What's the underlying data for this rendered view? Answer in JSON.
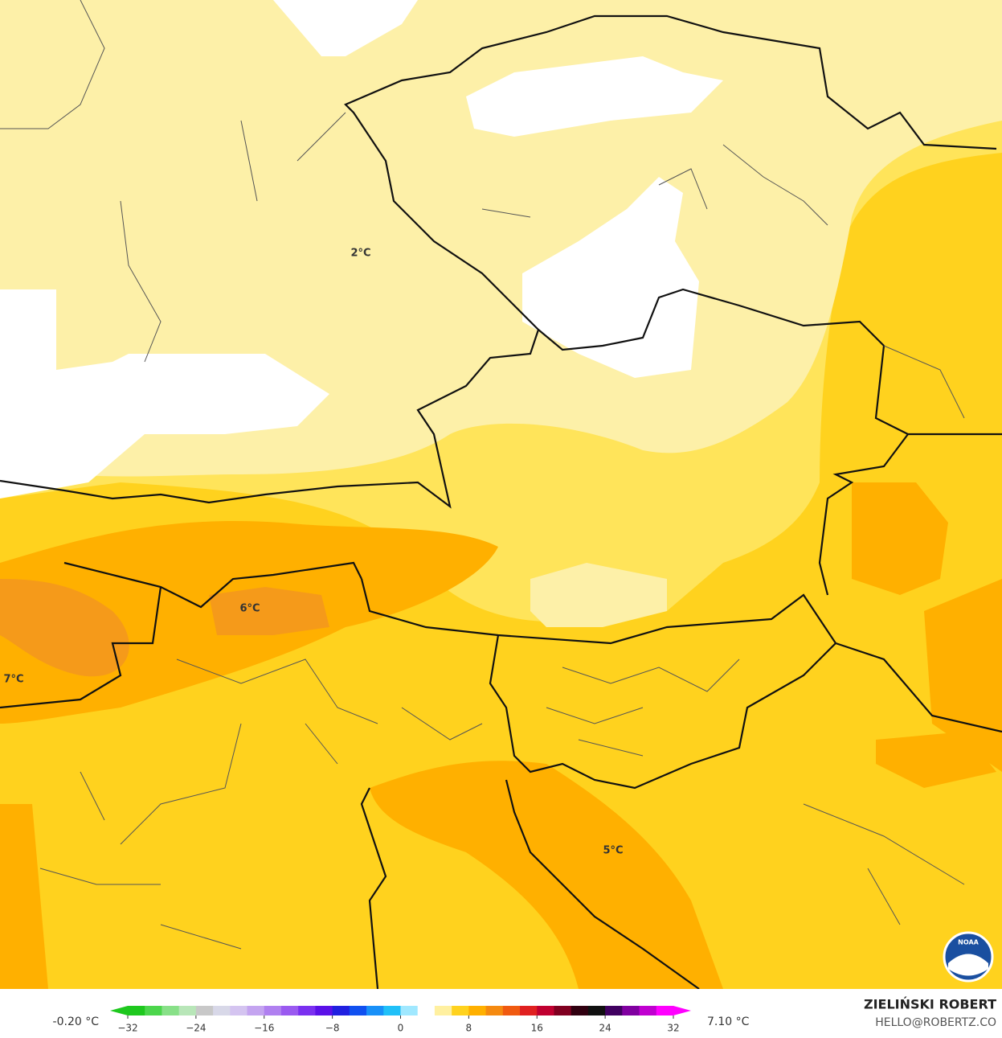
{
  "map": {
    "labels": [
      "2°C",
      "6°C",
      "7°C",
      "5°C"
    ],
    "colorbar": {
      "lim": [
        -32,
        32
      ],
      "ticks": [
        {
          "value": -32,
          "label": "−32"
        },
        {
          "value": -24,
          "label": "−24"
        },
        {
          "value": -16,
          "label": "−16"
        },
        {
          "value": -8,
          "label": "−8"
        },
        0,
        8,
        16,
        24,
        32
      ],
      "min_label": "-0.20 °C",
      "max_label": "7.10 °C",
      "colors": [
        "#1ec81e",
        "#4cd64c",
        "#88e088",
        "#b8e6b8",
        "#c8c8c8",
        "#d8d8e8",
        "#d4c4f0",
        "#c4a4f0",
        "#b080f0",
        "#9a5af0",
        "#7a30f0",
        "#5a10e8",
        "#2020e0",
        "#1050f0",
        "#1890f8",
        "#20c0f8",
        "#a0e8ff",
        "#ffffff",
        "#fff0a0",
        "#ffd21e",
        "#ffb000",
        "#f58a10",
        "#f05a10",
        "#e02020",
        "#c00030",
        "#800020",
        "#300010",
        "#101010",
        "#400060",
        "#8000a0",
        "#c000d0",
        "#ff00ff"
      ]
    },
    "credit": {
      "name": "ZIELIŃSKI ROBERT",
      "email": "HELLO@ROBERTZ.CO",
      "logo": "NOAA"
    }
  }
}
